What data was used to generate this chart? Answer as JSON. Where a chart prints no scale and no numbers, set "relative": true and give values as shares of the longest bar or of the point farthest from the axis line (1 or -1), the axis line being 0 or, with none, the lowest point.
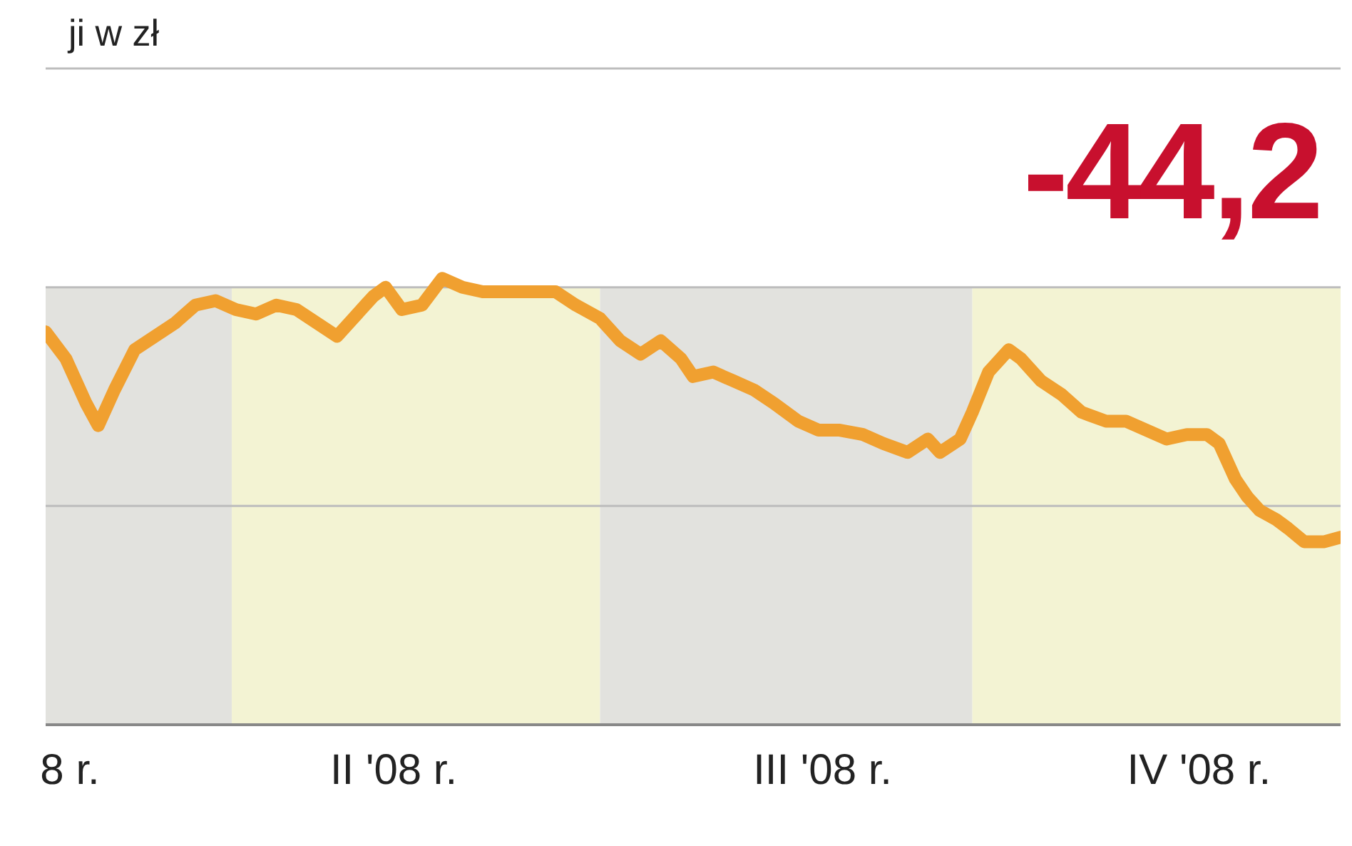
{
  "chart_data": {
    "type": "line",
    "title": "ji w zł",
    "relative": true,
    "legend": false,
    "marker": "none",
    "line_style": "solid",
    "annotations": [
      "-44,2"
    ],
    "xlim": [
      "2008-02-15",
      "2008-12-31"
    ],
    "xticks": [
      {
        "value": "2008-02-21",
        "label": "8 r."
      },
      {
        "value": "2008-05-11",
        "label": "II '08 r."
      },
      {
        "value": "2008-08-25",
        "label": "III '08 r."
      },
      {
        "value": "2008-11-26",
        "label": "IV '08 r."
      }
    ],
    "ref_lines": [
      {
        "axis": "y",
        "value": 0.49,
        "color": "#bdbdbd"
      },
      {
        "axis": "y",
        "value": 0.98,
        "color": "#bdbdbd"
      },
      {
        "axis": "y",
        "value": 1.47,
        "color": "#bdbdbd"
      }
    ],
    "bands": [
      {
        "axis": "x",
        "from": "2008-02-15",
        "to": "2008-04-01",
        "color": "#e2e2de"
      },
      {
        "axis": "x",
        "from": "2008-04-01",
        "to": "2008-07-01",
        "color": "#f3f3d3"
      },
      {
        "axis": "x",
        "from": "2008-07-01",
        "to": "2008-10-01",
        "color": "#e2e2de"
      },
      {
        "axis": "x",
        "from": "2008-10-01",
        "to": "2008-12-31",
        "color": "#f3f3d3"
      }
    ],
    "x": [
      "2008-02-15",
      "2008-02-20",
      "2008-02-25",
      "2008-02-28",
      "2008-03-03",
      "2008-03-08",
      "2008-03-13",
      "2008-03-18",
      "2008-03-23",
      "2008-03-28",
      "2008-04-02",
      "2008-04-07",
      "2008-04-12",
      "2008-04-17",
      "2008-04-22",
      "2008-04-27",
      "2008-05-01",
      "2008-05-06",
      "2008-05-09",
      "2008-05-13",
      "2008-05-18",
      "2008-05-23",
      "2008-05-28",
      "2008-06-02",
      "2008-06-09",
      "2008-06-15",
      "2008-06-20",
      "2008-06-25",
      "2008-07-01",
      "2008-07-06",
      "2008-07-11",
      "2008-07-16",
      "2008-07-21",
      "2008-07-24",
      "2008-07-29",
      "2008-08-03",
      "2008-08-08",
      "2008-08-13",
      "2008-08-19",
      "2008-08-24",
      "2008-08-29",
      "2008-09-04",
      "2008-09-09",
      "2008-09-15",
      "2008-09-20",
      "2008-09-23",
      "2008-09-28",
      "2008-10-01",
      "2008-10-05",
      "2008-10-10",
      "2008-10-13",
      "2008-10-18",
      "2008-10-23",
      "2008-10-28",
      "2008-11-03",
      "2008-11-08",
      "2008-11-13",
      "2008-11-18",
      "2008-11-23",
      "2008-11-28",
      "2008-12-01",
      "2008-12-05",
      "2008-12-08",
      "2008-12-11",
      "2008-12-15",
      "2008-12-18",
      "2008-12-22",
      "2008-12-27",
      "2008-12-31"
    ],
    "series": [
      {
        "color": "#f0a030",
        "values": [
          0.88,
          0.82,
          0.72,
          0.67,
          0.75,
          0.84,
          0.87,
          0.9,
          0.94,
          0.95,
          0.93,
          0.92,
          0.94,
          0.93,
          0.9,
          0.87,
          0.91,
          0.96,
          0.98,
          0.93,
          0.94,
          1,
          0.98,
          0.97,
          0.97,
          0.97,
          0.97,
          0.94,
          0.91,
          0.86,
          0.83,
          0.86,
          0.82,
          0.78,
          0.79,
          0.77,
          0.75,
          0.72,
          0.68,
          0.66,
          0.66,
          0.65,
          0.63,
          0.61,
          0.64,
          0.61,
          0.64,
          0.7,
          0.79,
          0.84,
          0.82,
          0.77,
          0.74,
          0.7,
          0.68,
          0.68,
          0.66,
          0.64,
          0.65,
          0.65,
          0.63,
          0.55,
          0.51,
          0.48,
          0.46,
          0.44,
          0.41,
          0.41,
          0.42
        ]
      }
    ]
  }
}
